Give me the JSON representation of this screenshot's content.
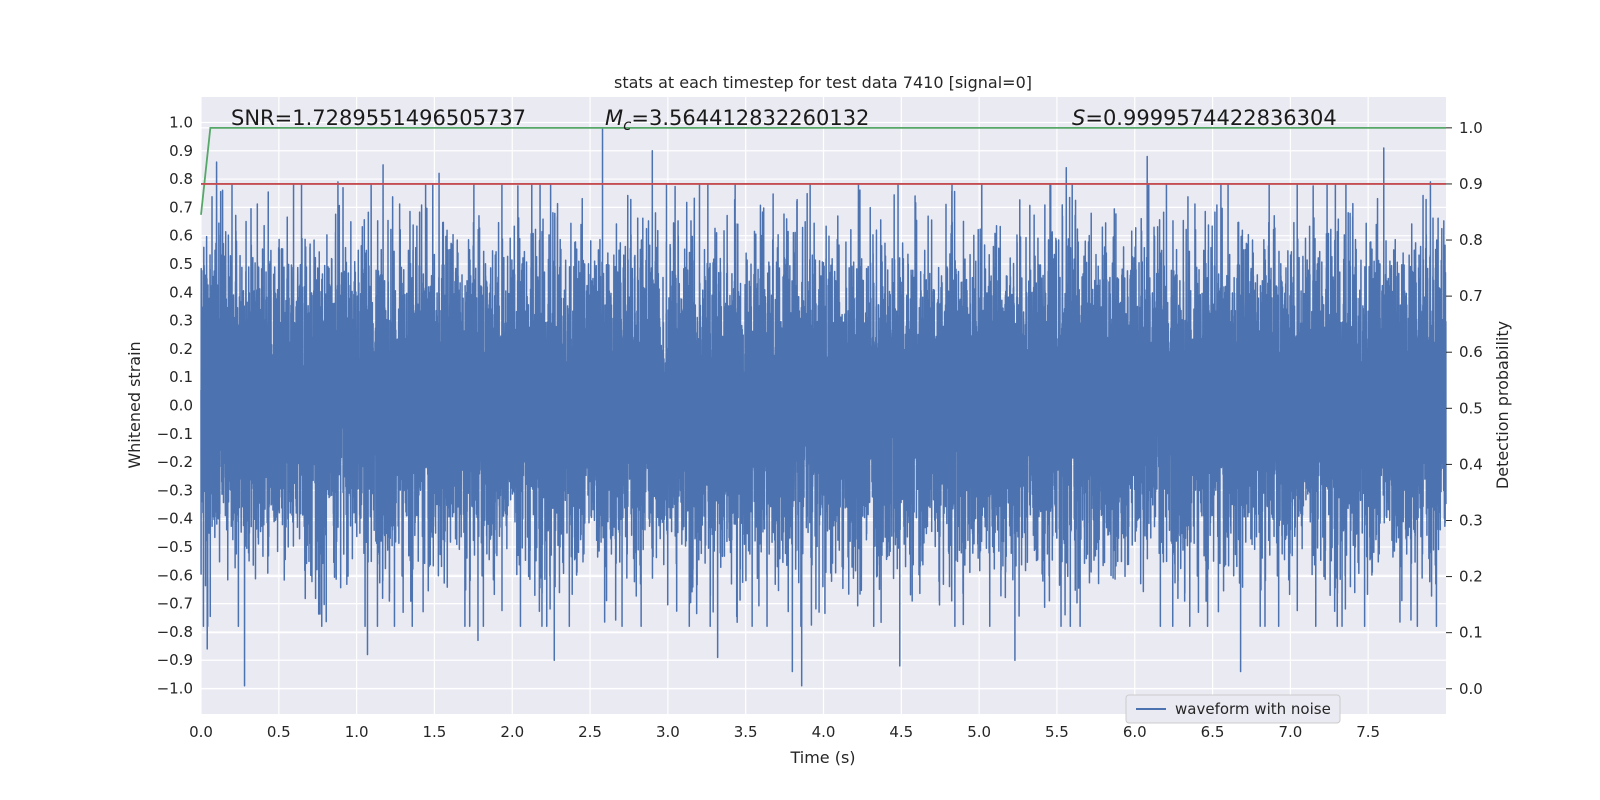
{
  "chart_data": {
    "type": "line",
    "title": "stats at each timestep for test data 7410 [signal=0]",
    "xlabel": "Time (s)",
    "ylabel": "Whitened strain",
    "y2label": "Detection probability",
    "xlim": [
      0.0,
      8.0
    ],
    "ylim": [
      -1.09,
      1.09
    ],
    "y2lim": [
      -0.045,
      1.055
    ],
    "x_ticks": [
      "0.0",
      "0.5",
      "1.0",
      "1.5",
      "2.0",
      "2.5",
      "3.0",
      "3.5",
      "4.0",
      "4.5",
      "5.0",
      "5.5",
      "6.0",
      "6.5",
      "7.0",
      "7.5"
    ],
    "y_ticks": [
      "1.0",
      "0.9",
      "0.8",
      "0.7",
      "0.6",
      "0.5",
      "0.4",
      "0.3",
      "0.2",
      "0.1",
      "0.0",
      "-0.1",
      "-0.2",
      "-0.3",
      "-0.4",
      "-0.5",
      "-0.6",
      "-0.7",
      "-0.8",
      "-0.9",
      "-1.0"
    ],
    "y2_ticks": [
      "1.0",
      "0.9",
      "0.8",
      "0.7",
      "0.6",
      "0.5",
      "0.4",
      "0.3",
      "0.2",
      "0.1",
      "0.0"
    ],
    "annotations": {
      "snr": "SNR=1.7289551496505737",
      "mc_symbol": "M",
      "mc_sub": "c",
      "mc_value": "=3.564412832260132",
      "s_symbol": "S",
      "s_value": "=0.9999574422836304"
    },
    "legend": {
      "entries": [
        "waveform with noise"
      ],
      "placement": "lower-right"
    },
    "series": [
      {
        "name": "waveform with noise",
        "axis": "left",
        "color": "#4c72b0",
        "sample_rate": 2048,
        "duration": 8.0,
        "amplitude": 0.62,
        "seed": 7410,
        "spikes": [
          {
            "x": 0.1,
            "y": 0.86
          },
          {
            "x": 0.28,
            "y": -0.99
          },
          {
            "x": 0.04,
            "y": -0.86
          },
          {
            "x": 0.88,
            "y": 0.79
          },
          {
            "x": 1.07,
            "y": -0.88
          },
          {
            "x": 1.17,
            "y": 0.85
          },
          {
            "x": 1.53,
            "y": 0.82
          },
          {
            "x": 1.78,
            "y": -0.83
          },
          {
            "x": 2.27,
            "y": -0.9
          },
          {
            "x": 2.58,
            "y": 0.98
          },
          {
            "x": 2.9,
            "y": 0.9
          },
          {
            "x": 3.32,
            "y": -0.89
          },
          {
            "x": 3.8,
            "y": -0.94
          },
          {
            "x": 3.86,
            "y": -0.99
          },
          {
            "x": 4.49,
            "y": -0.92
          },
          {
            "x": 5.23,
            "y": -0.9
          },
          {
            "x": 5.56,
            "y": 0.84
          },
          {
            "x": 6.08,
            "y": 0.88
          },
          {
            "x": 6.68,
            "y": -0.94
          },
          {
            "x": 7.6,
            "y": 0.91
          },
          {
            "x": 7.9,
            "y": 0.79
          }
        ]
      },
      {
        "name": "detection probability",
        "axis": "right",
        "color": "#55a868",
        "points": [
          [
            0.0,
            0.845
          ],
          [
            0.06,
            1.0
          ],
          [
            8.0,
            1.0
          ]
        ]
      },
      {
        "name": "threshold",
        "axis": "right",
        "color": "#c44e52",
        "points": [
          [
            0.0,
            0.9
          ],
          [
            8.0,
            0.9
          ]
        ]
      }
    ]
  }
}
